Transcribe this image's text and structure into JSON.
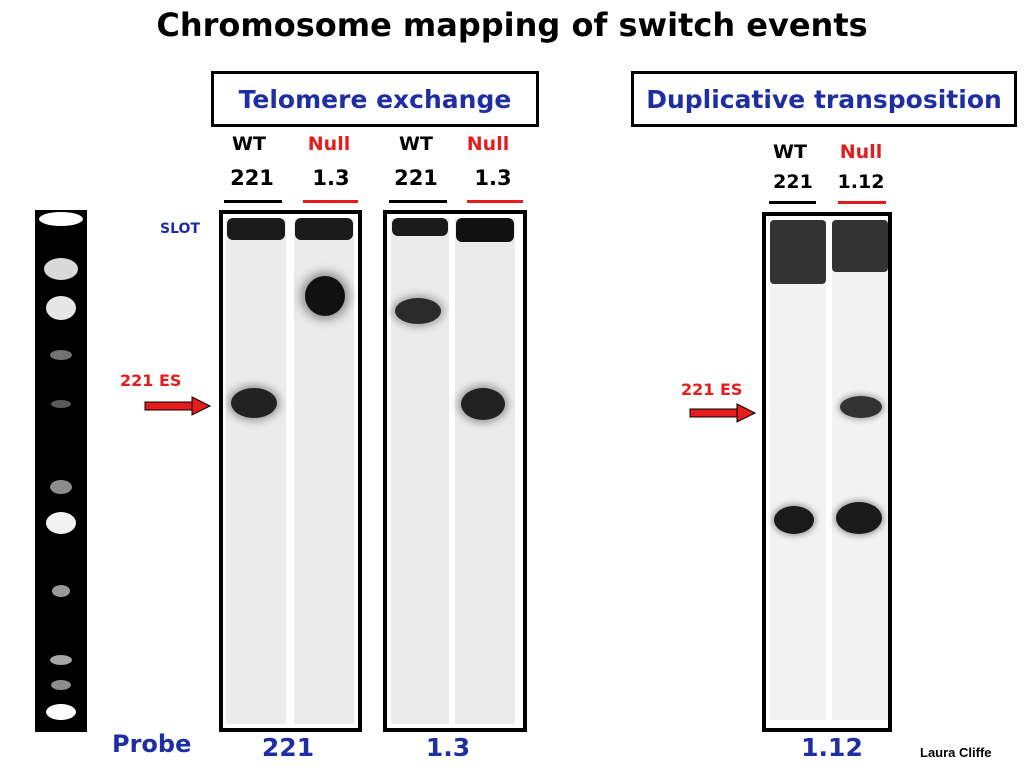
{
  "title": "Chromosome mapping of switch events",
  "sections": {
    "telomere": "Telomere exchange",
    "duplicative": "Duplicative transposition"
  },
  "lanes": {
    "blot1": {
      "wt": "WT",
      "wt_num": "221",
      "null": "Null",
      "null_num": "1.3"
    },
    "blot2": {
      "wt": "WT",
      "wt_num": "221",
      "null": "Null",
      "null_num": "1.3"
    },
    "blot3": {
      "wt": "WT",
      "wt_num": "221",
      "null": "Null",
      "null_num": "1.12"
    }
  },
  "labels": {
    "slot": "SLOT",
    "es_left": "221 ES",
    "es_right": "221 ES",
    "probe": "Probe"
  },
  "probes": {
    "blot1": "221",
    "blot2": "1.3",
    "blot3": "1.12"
  },
  "credit": "Laura Cliffe",
  "colors": {
    "blue": "#1f2fa3",
    "red": "#e51c1c"
  }
}
